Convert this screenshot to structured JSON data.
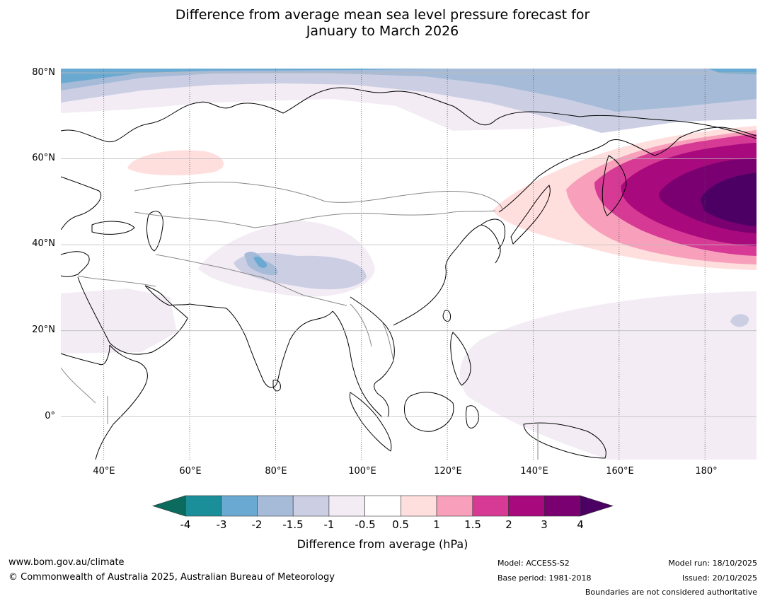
{
  "title": {
    "line1": "Difference from average mean sea level pressure forecast for",
    "line2": "January to March 2026"
  },
  "map": {
    "lat_labels": [
      "80°N",
      "60°N",
      "40°N",
      "20°N",
      "0°"
    ],
    "lon_labels": [
      "40°E",
      "60°E",
      "80°E",
      "100°E",
      "120°E",
      "140°E",
      "160°E",
      "180°"
    ],
    "extent": {
      "lon": [
        30,
        192
      ],
      "lat": [
        -10,
        81
      ]
    }
  },
  "colorbar": {
    "ticks": [
      "-4",
      "-3",
      "-2",
      "-1.5",
      "-1",
      "-0.5",
      "0.5",
      "1",
      "1.5",
      "2",
      "3",
      "4"
    ],
    "colors": [
      "#1b8f99",
      "#6aaad2",
      "#a6bbd8",
      "#cccfe4",
      "#f3ecf5",
      "#ffffff",
      "#ffdede",
      "#f79fbb",
      "#d63a95",
      "#a8097c",
      "#7a0072"
    ],
    "under_color": "#0b6b5e",
    "over_color": "#4c0064",
    "label": "Difference from average (hPa)"
  },
  "footer": {
    "website": "www.bom.gov.au/climate",
    "copyright": "© Commonwealth of Australia 2025, Australian Bureau of Meteorology",
    "model": "Model: ACCESS-S2",
    "base_period": "Base period: 1981-2018",
    "model_run": "Model run: 18/10/2025",
    "issued": "Issued: 20/10/2025",
    "disclaimer": "Boundaries are not considered authoritative"
  }
}
